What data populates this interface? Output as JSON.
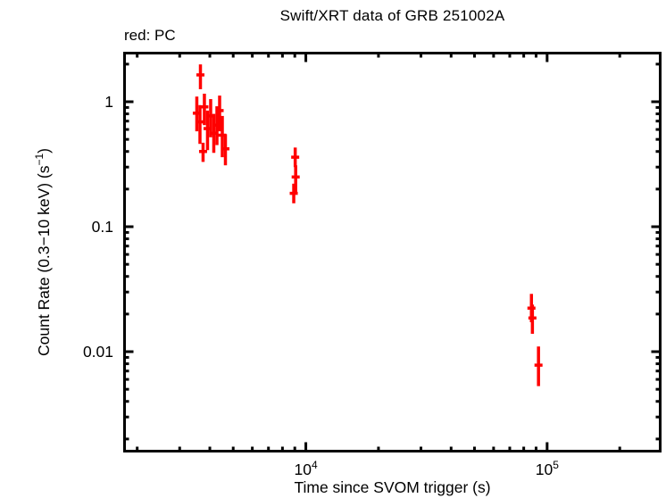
{
  "chart": {
    "title": "Swift/XRT data of GRB 251002A",
    "legend": "red: PC"
  },
  "chart_data": {
    "type": "scatter",
    "title": "Swift/XRT data of GRB 251002A",
    "legend_note": "red: PC",
    "legend_position": "top-left",
    "xlabel": "Time since SVOM trigger (s)",
    "ylabel": "Count Rate (0.3−10 keV) (s⁻¹)",
    "ylabel_parts": {
      "pre": "Count Rate (0.3−10 keV) (s",
      "sup": "−1",
      "post": ")"
    },
    "xscale": "log",
    "yscale": "log",
    "grid": false,
    "xlim": [
      1750,
      298000
    ],
    "ylim": [
      0.00156,
      2.512
    ],
    "x_tick_labels": [
      {
        "value": 10000,
        "base": "10",
        "sup": "4"
      },
      {
        "value": 100000,
        "base": "10",
        "sup": "5"
      }
    ],
    "y_tick_labels": [
      {
        "value": 1,
        "label": "1"
      },
      {
        "value": 0.1,
        "label": "0.1"
      },
      {
        "value": 0.01,
        "label": "0.01"
      }
    ],
    "series": [
      {
        "name": "PC",
        "color": "#ff0000",
        "marker": "vertical error bar with horizontal time-bin dash",
        "points": [
          {
            "t": 3657,
            "rate": 1.64,
            "lo": 1.26,
            "hi": 1.99
          },
          {
            "t": 3533,
            "rate": 0.81,
            "lo": 0.58,
            "hi": 1.1
          },
          {
            "t": 3641,
            "rate": 0.69,
            "lo": 0.46,
            "hi": 0.94
          },
          {
            "t": 3750,
            "rate": 0.4,
            "lo": 0.33,
            "hi": 0.47
          },
          {
            "t": 3798,
            "rate": 0.91,
            "lo": 0.65,
            "hi": 1.16
          },
          {
            "t": 3913,
            "rate": 0.61,
            "lo": 0.41,
            "hi": 0.85
          },
          {
            "t": 4032,
            "rate": 0.77,
            "lo": 0.52,
            "hi": 1.05
          },
          {
            "t": 4154,
            "rate": 0.56,
            "lo": 0.39,
            "hi": 0.8
          },
          {
            "t": 4281,
            "rate": 0.65,
            "lo": 0.45,
            "hi": 0.92
          },
          {
            "t": 4392,
            "rate": 0.85,
            "lo": 0.58,
            "hi": 1.12
          },
          {
            "t": 4506,
            "rate": 0.54,
            "lo": 0.36,
            "hi": 0.77
          },
          {
            "t": 4642,
            "rate": 0.42,
            "lo": 0.31,
            "hi": 0.55
          },
          {
            "t": 8910,
            "rate": 0.185,
            "lo": 0.154,
            "hi": 0.221
          },
          {
            "t": 9035,
            "rate": 0.36,
            "lo": 0.3,
            "hi": 0.43
          },
          {
            "t": 9075,
            "rate": 0.25,
            "lo": 0.19,
            "hi": 0.31
          },
          {
            "t": 86100,
            "rate": 0.0223,
            "lo": 0.0172,
            "hi": 0.029
          },
          {
            "t": 86900,
            "rate": 0.0186,
            "lo": 0.0139,
            "hi": 0.0238
          },
          {
            "t": 92100,
            "rate": 0.0078,
            "lo": 0.0053,
            "hi": 0.011
          }
        ]
      }
    ]
  },
  "colors": {
    "data_red": "#ff0000",
    "axis": "#000000",
    "background": "#ffffff"
  }
}
